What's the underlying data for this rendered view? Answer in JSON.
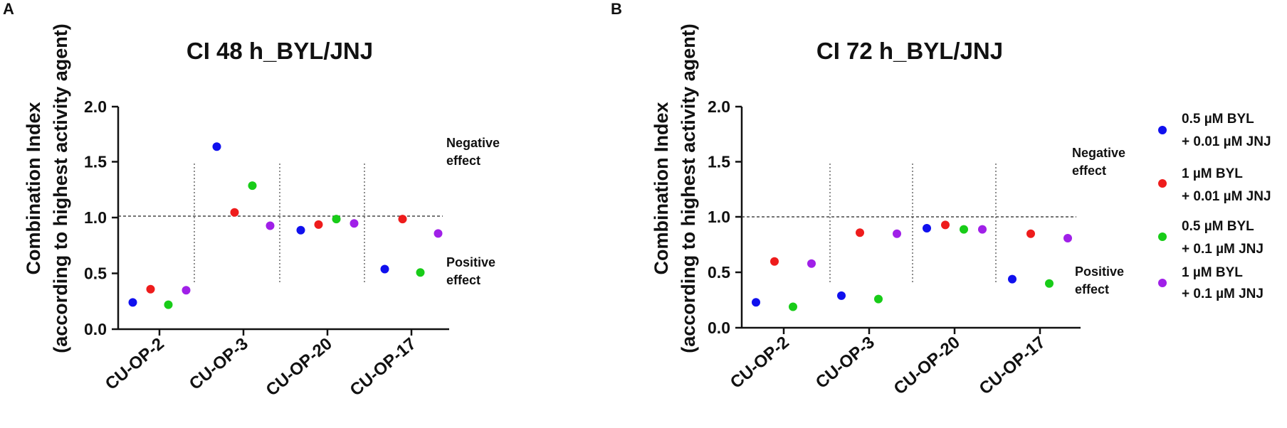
{
  "panels": [
    {
      "label": "A",
      "chart_data": {
        "type": "scatter",
        "title": "CI 48 h_BYL/JNJ",
        "xlabel": "",
        "ylabel": "Combination Index",
        "ylabel2": "(according to highest activity agent)",
        "ylim": [
          0,
          2
        ],
        "yticks": [
          "0.0",
          "0.5",
          "1.0",
          "1.5",
          "2.0"
        ],
        "ytick_values": [
          0,
          0.5,
          1.0,
          1.5,
          2.0
        ],
        "categories": [
          "CU-OP-2",
          "CU-OP-3",
          "CU-OP-20",
          "CU-OP-17"
        ],
        "reference_line": 1.0,
        "series": [
          {
            "name": "0.5 µM BYL + 0.01 µM JNJ",
            "color": "#1010ee",
            "values": [
              0.24,
              1.64,
              0.89,
              0.54
            ]
          },
          {
            "name": "1 µM BYL + 0.01 µM JNJ",
            "color": "#ee1c1c",
            "values": [
              0.36,
              1.05,
              0.94,
              0.99
            ]
          },
          {
            "name": "0.5 µM BYL + 0.1 µM JNJ",
            "color": "#18cc18",
            "values": [
              0.22,
              1.29,
              0.99,
              0.51
            ]
          },
          {
            "name": "1 µM BYL + 0.1 µM JNJ",
            "color": "#a020e8",
            "values": [
              0.35,
              0.93,
              0.95,
              0.86
            ]
          }
        ],
        "annotations": {
          "negative": [
            "Negative",
            "effect"
          ],
          "positive": [
            "Positive",
            "effect"
          ]
        }
      }
    },
    {
      "label": "B",
      "chart_data": {
        "type": "scatter",
        "title": "CI 72 h_BYL/JNJ",
        "xlabel": "",
        "ylabel": "Combination Index",
        "ylabel2": "(according to highest activity agent)",
        "ylim": [
          0,
          2
        ],
        "yticks": [
          "0.0",
          "0.5",
          "1.0",
          "1.5",
          "2.0"
        ],
        "ytick_values": [
          0,
          0.5,
          1.0,
          1.5,
          2.0
        ],
        "categories": [
          "CU-OP-2",
          "CU-OP-3",
          "CU-OP-20",
          "CU-OP-17"
        ],
        "reference_line": 1.0,
        "series": [
          {
            "name": "0.5 µM BYL + 0.01 µM JNJ",
            "color": "#1010ee",
            "values": [
              0.23,
              0.29,
              0.9,
              0.44
            ]
          },
          {
            "name": "1 µM BYL + 0.01 µM JNJ",
            "color": "#ee1c1c",
            "values": [
              0.6,
              0.86,
              0.93,
              0.85
            ]
          },
          {
            "name": "0.5 µM BYL + 0.1 µM JNJ",
            "color": "#18cc18",
            "values": [
              0.19,
              0.26,
              0.89,
              0.4
            ]
          },
          {
            "name": "1 µM BYL + 0.1 µM JNJ",
            "color": "#a020e8",
            "values": [
              0.58,
              0.85,
              0.89,
              0.81
            ]
          }
        ],
        "annotations": {
          "negative": [
            "Negative",
            "effect"
          ],
          "positive": [
            "Positive",
            "effect"
          ]
        }
      }
    }
  ],
  "legend": [
    {
      "line1": "0.5 µM BYL",
      "line2": "+ 0.01 µM JNJ",
      "color": "#1010ee"
    },
    {
      "line1": "1 µM  BYL",
      "line2": "+ 0.01 µM JNJ",
      "color": "#ee1c1c"
    },
    {
      "line1": "0.5 µM BYL",
      "line2": "+ 0.1 µM JNJ",
      "color": "#18cc18"
    },
    {
      "line1": "1 µM  BYL",
      "line2": "+ 0.1 µM JNJ",
      "color": "#a020e8"
    }
  ]
}
